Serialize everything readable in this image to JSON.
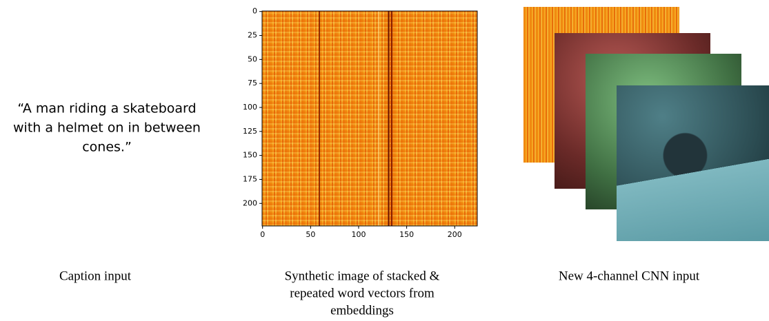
{
  "caption": {
    "lines": [
      "“A man riding a skateboard",
      "with a helmet on in between",
      "cones.”"
    ]
  },
  "heatmap": {
    "xticks": [
      0,
      50,
      100,
      150,
      200
    ],
    "yticks": [
      0,
      25,
      50,
      75,
      100,
      125,
      150,
      175,
      200
    ]
  },
  "labels": {
    "caption_input": "Caption input",
    "synthetic": [
      "Synthetic image of stacked &",
      "repeated word vectors from",
      "embeddings"
    ],
    "cnn_input": "New 4-channel CNN input"
  }
}
